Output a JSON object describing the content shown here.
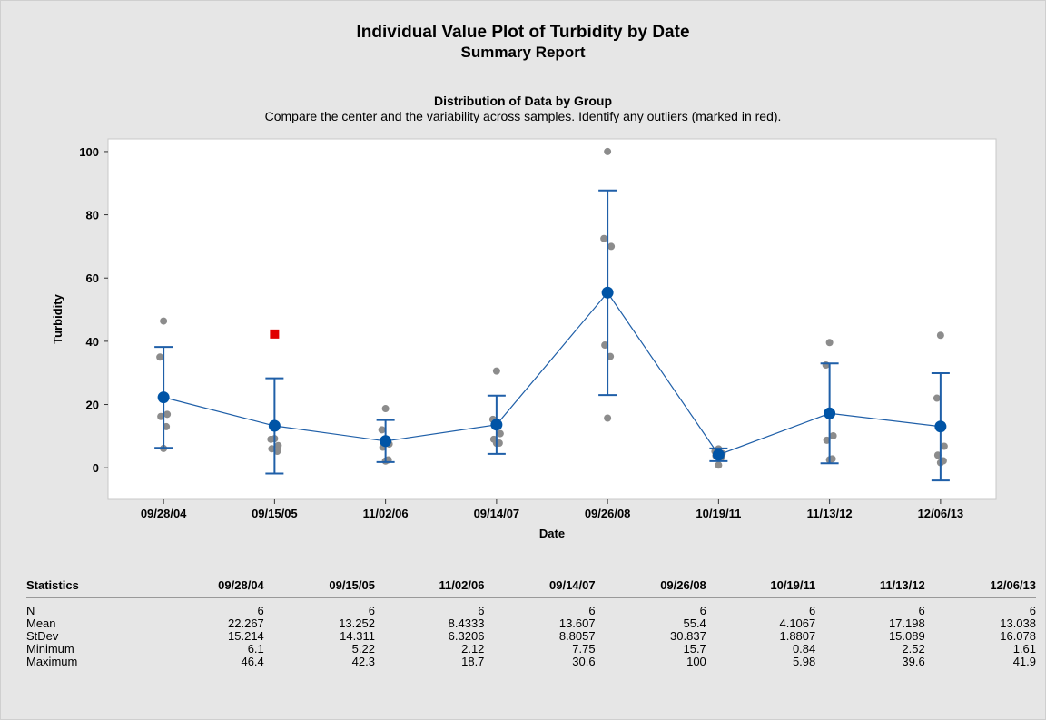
{
  "report": {
    "title": "Individual Value Plot of Turbidity by Date",
    "subtitle": "Summary Report"
  },
  "panel": {
    "title": "Distribution of Data by Group",
    "description": "Compare the center and the variability across samples. Identify any outliers (marked in red)."
  },
  "colors": {
    "background": "#e6e6e6",
    "plot_area": "#ffffff",
    "mean_line": "#1f5fa8",
    "mean_dot": "#0054a6",
    "points": "#8c8c8c",
    "outlier": "#e00000"
  },
  "chart_data": {
    "type": "scatter",
    "xlabel": "Date",
    "ylabel": "Turbidity",
    "categories": [
      "09/28/04",
      "09/15/05",
      "11/02/06",
      "09/14/07",
      "09/26/08",
      "10/19/11",
      "11/13/12",
      "12/06/13"
    ],
    "ylim": [
      -10,
      104
    ],
    "yticks": [
      0,
      20,
      40,
      60,
      80,
      100
    ],
    "grid": false,
    "legend": "none",
    "points": [
      [
        46.4,
        35,
        16.9,
        16.2,
        13,
        6.1
      ],
      [
        9.2,
        9,
        7,
        6,
        5.22
      ],
      [
        18.7,
        12,
        7.5,
        6.5,
        2.5,
        2.12
      ],
      [
        30.6,
        15.3,
        10.8,
        9,
        7.8,
        7.75
      ],
      [
        100,
        72.5,
        70,
        38.8,
        35.2,
        15.7
      ],
      [
        5.98,
        5.2,
        4.5,
        3.8,
        3.2,
        0.84
      ],
      [
        39.6,
        32.5,
        10.1,
        8.7,
        2.8,
        2.52
      ],
      [
        41.9,
        22,
        6.8,
        4,
        2.2,
        1.61
      ]
    ],
    "outliers": [
      {
        "category": "09/15/05",
        "value": 42.3
      }
    ],
    "mean": [
      22.267,
      13.252,
      8.4333,
      13.607,
      55.4,
      4.1067,
      17.198,
      13.038
    ],
    "interval_low": [
      6.3,
      -1.8,
      1.8,
      4.4,
      23.0,
      2.1,
      1.4,
      -4.0
    ],
    "interval_high": [
      38.2,
      28.3,
      15.1,
      22.8,
      87.7,
      6.1,
      33.0,
      29.9
    ]
  },
  "stats": {
    "header": "Statistics",
    "rows": [
      {
        "label": "N",
        "values": [
          "6",
          "6",
          "6",
          "6",
          "6",
          "6",
          "6",
          "6"
        ]
      },
      {
        "label": "Mean",
        "values": [
          "22.267",
          "13.252",
          "8.4333",
          "13.607",
          "55.4",
          "4.1067",
          "17.198",
          "13.038"
        ]
      },
      {
        "label": "StDev",
        "values": [
          "15.214",
          "14.311",
          "6.3206",
          "8.8057",
          "30.837",
          "1.8807",
          "15.089",
          "16.078"
        ]
      },
      {
        "label": "Minimum",
        "values": [
          "6.1",
          "5.22",
          "2.12",
          "7.75",
          "15.7",
          "0.84",
          "2.52",
          "1.61"
        ]
      },
      {
        "label": "Maximum",
        "values": [
          "46.4",
          "42.3",
          "18.7",
          "30.6",
          "100",
          "5.98",
          "39.6",
          "41.9"
        ]
      }
    ]
  }
}
